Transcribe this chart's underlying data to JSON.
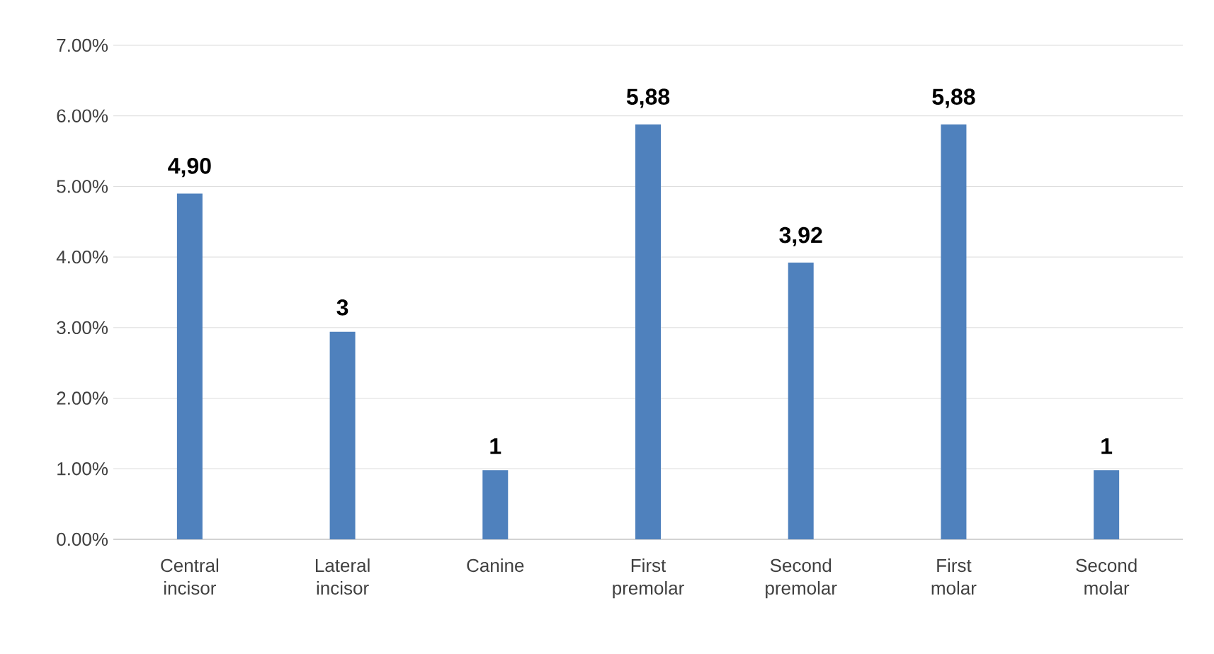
{
  "chart_data": {
    "type": "bar",
    "categories": [
      "Central incisor",
      "Lateral incisor",
      "Canine",
      "First premolar",
      "Second premolar",
      "First molar",
      "Second molar"
    ],
    "values": [
      4.9,
      2.94,
      0.98,
      5.88,
      3.92,
      5.88,
      0.98
    ],
    "value_labels": [
      "4,90",
      "3",
      "1",
      "5,88",
      "3,92",
      "5,88",
      "1"
    ],
    "color": "#4f81bd",
    "ylim": [
      0,
      7
    ],
    "yticks": [
      {
        "value": 0,
        "label": "0.00%"
      },
      {
        "value": 1,
        "label": "1.00%"
      },
      {
        "value": 2,
        "label": "2.00%"
      },
      {
        "value": 3,
        "label": "3.00%"
      },
      {
        "value": 4,
        "label": "4.00%"
      },
      {
        "value": 5,
        "label": "5.00%"
      },
      {
        "value": 6,
        "label": "6.00%"
      },
      {
        "value": 7,
        "label": "7.00%"
      }
    ],
    "grid": "y"
  }
}
